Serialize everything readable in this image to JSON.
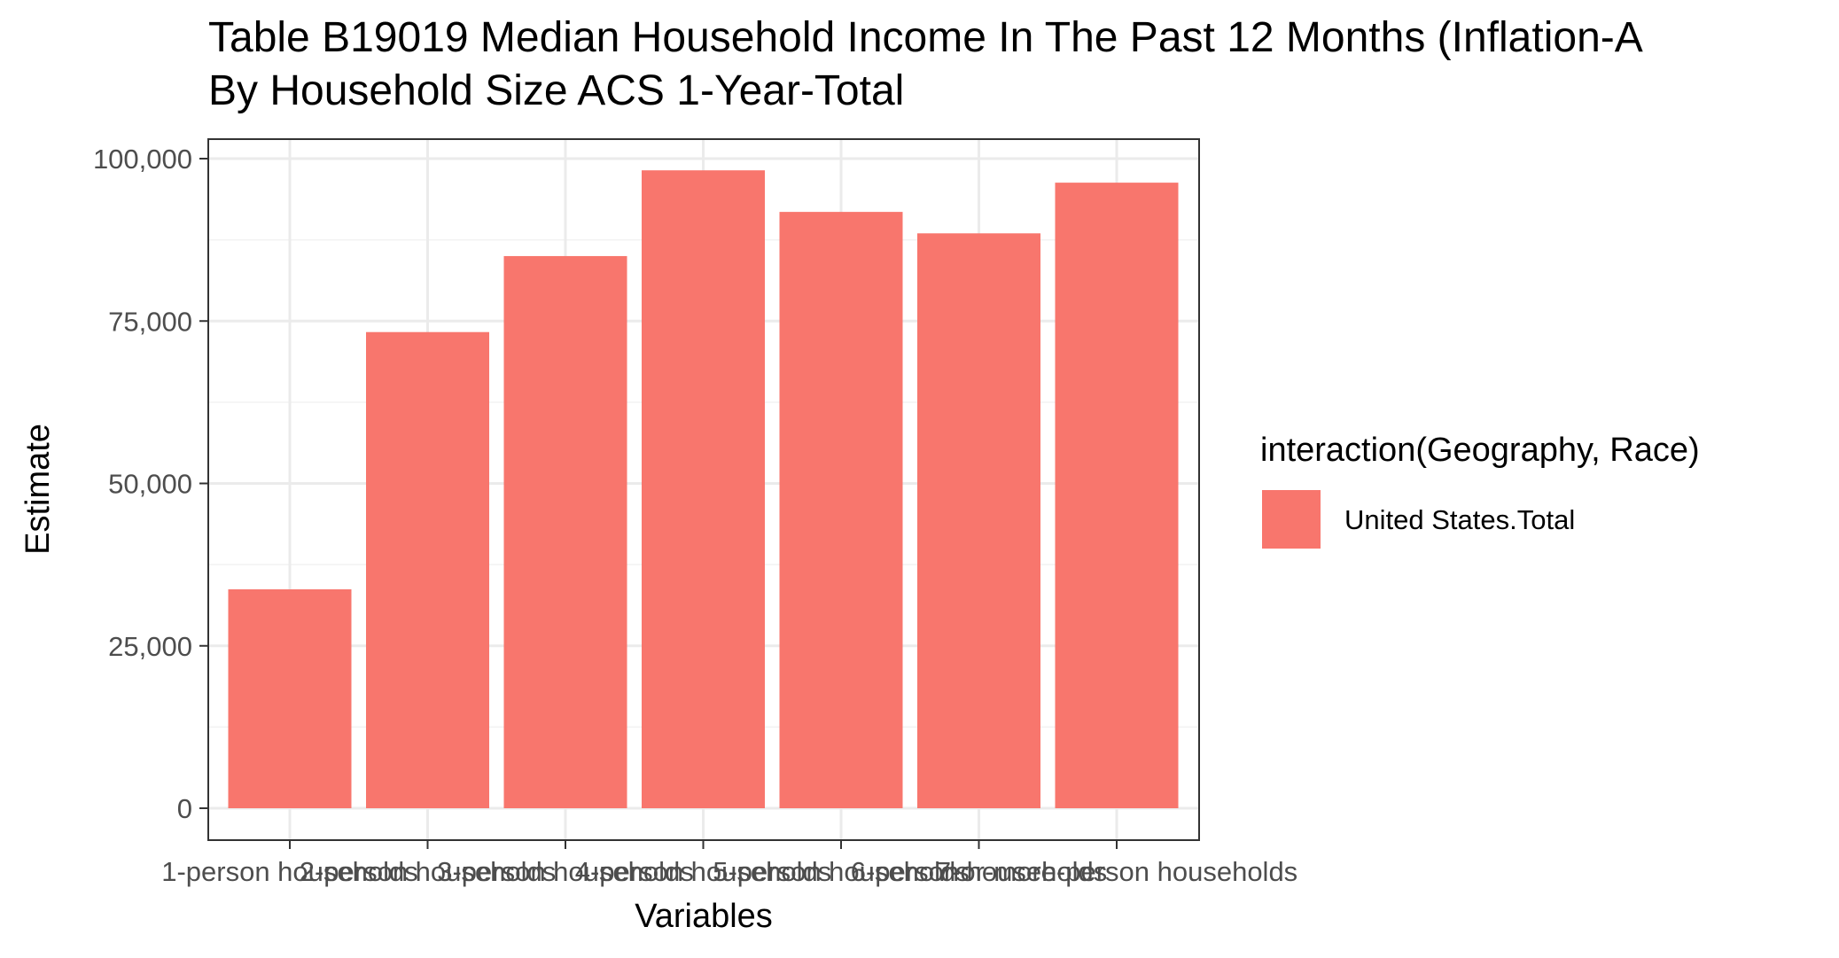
{
  "chart_data": {
    "type": "bar",
    "title_lines": [
      "Table B19019 Median Household Income In The Past 12 Months (Inflation-A",
      "By Household Size ACS 1-Year-Total"
    ],
    "xlabel": "Variables",
    "ylabel": "Estimate",
    "categories": [
      "1-person households",
      "2-person households",
      "3-person households",
      "4-person households",
      "5-person households",
      "6-person households",
      "7-or-more-person households"
    ],
    "x_tick_labels_visible": [
      "1-person",
      "",
      "",
      "",
      "",
      "",
      "",
      "households"
    ],
    "series": [
      {
        "name": "United States.Total",
        "color": "#f8766d",
        "values": [
          33700,
          73300,
          85000,
          98200,
          91800,
          88500,
          96300
        ]
      }
    ],
    "ylim": [
      0,
      100000
    ],
    "yticks": [
      0,
      25000,
      50000,
      75000,
      100000
    ],
    "ytick_labels": [
      "0",
      "25,000",
      "50,000",
      "75,000",
      "100,000"
    ],
    "grid": true,
    "legend": {
      "title": "interaction(Geography, Race)",
      "position": "right"
    },
    "theme": "bw"
  }
}
